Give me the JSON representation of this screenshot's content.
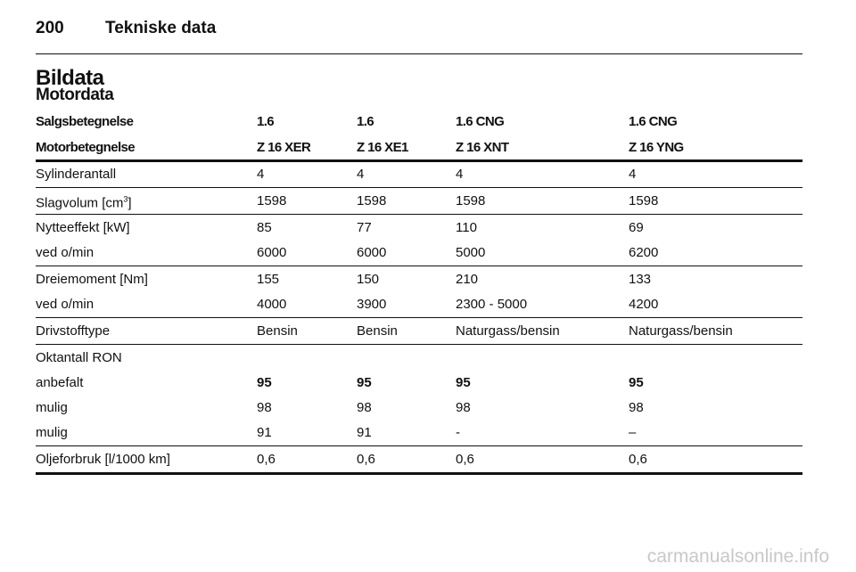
{
  "header": {
    "page_number": "200",
    "section": "Tekniske data"
  },
  "title": "Bildata",
  "subtitle": "Motordata",
  "table": {
    "head": [
      {
        "label": "Salgsbetegnelse",
        "values": [
          "1.6",
          "1.6",
          "1.6 CNG",
          "1.6 CNG"
        ]
      },
      {
        "label": "Motorbetegnelse",
        "values": [
          "Z 16 XER",
          "Z 16 XE1",
          "Z 16 XNT",
          "Z 16 YNG"
        ]
      }
    ],
    "groups": [
      [
        {
          "label": "Sylinderantall",
          "values": [
            "4",
            "4",
            "4",
            "4"
          ]
        }
      ],
      [
        {
          "label": "Slagvolum [cm",
          "label_sup": "3",
          "label_post": "]",
          "values": [
            "1598",
            "1598",
            "1598",
            "1598"
          ]
        }
      ],
      [
        {
          "label": "Nytteeffekt [kW]",
          "values": [
            "85",
            "77",
            "110",
            "69"
          ]
        },
        {
          "label": "ved o/min",
          "values": [
            "6000",
            "6000",
            "5000",
            "6200"
          ]
        }
      ],
      [
        {
          "label": "Dreiemoment [Nm]",
          "values": [
            "155",
            "150",
            "210",
            "133"
          ]
        },
        {
          "label": "ved o/min",
          "values": [
            "4000",
            "3900",
            "2300 - 5000",
            "4200"
          ]
        }
      ],
      [
        {
          "label": "Drivstofftype",
          "values": [
            "Bensin",
            "Bensin",
            "Naturgass/bensin",
            "Naturgass/bensin"
          ]
        }
      ],
      [
        {
          "label": "Oktantall RON",
          "values": []
        },
        {
          "label": "anbefalt",
          "values": [
            "95",
            "95",
            "95",
            "95"
          ],
          "emphasis": true
        },
        {
          "label": "mulig",
          "values": [
            "98",
            "98",
            "98",
            "98"
          ]
        },
        {
          "label": "mulig",
          "values": [
            "91",
            "91",
            "-",
            "–"
          ]
        }
      ],
      [
        {
          "label": "Oljeforbruk [l/1000 km]",
          "values": [
            "0,6",
            "0,6",
            "0,6",
            "0,6"
          ]
        }
      ]
    ]
  },
  "watermark": "carmanualsonline.info"
}
